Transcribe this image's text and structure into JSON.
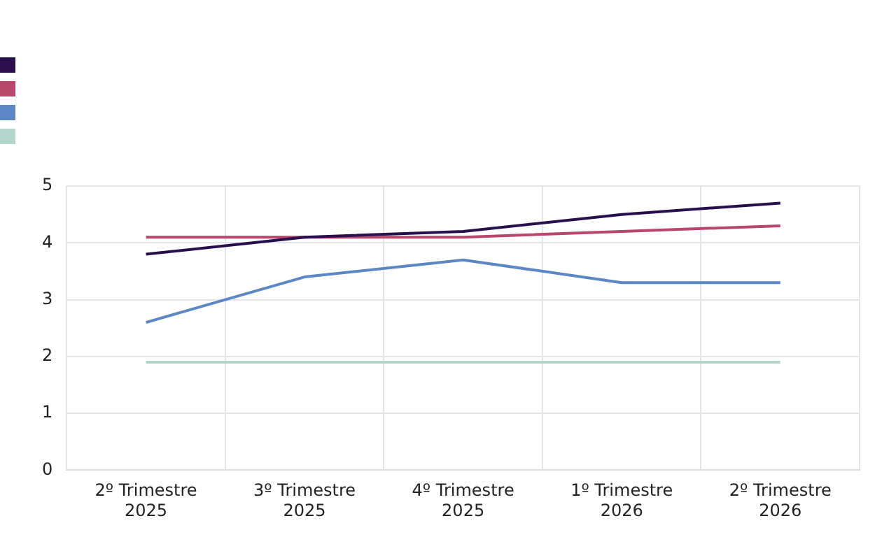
{
  "chart_data": {
    "type": "line",
    "categories": [
      "2º Trimestre 2025",
      "3º Trimestre 2025",
      "4º Trimestre 2025",
      "1º Trimestre 2026",
      "2º Trimestre 2026"
    ],
    "series": [
      {
        "color": "#2a0f4f",
        "values": [
          3.8,
          4.1,
          4.2,
          4.5,
          4.7
        ]
      },
      {
        "color": "#b8476b",
        "values": [
          4.1,
          4.1,
          4.1,
          4.2,
          4.3
        ]
      },
      {
        "color": "#5b87c5",
        "values": [
          2.6,
          3.4,
          3.7,
          3.3,
          3.3
        ]
      },
      {
        "color": "#b3d6cc",
        "values": [
          1.9,
          1.9,
          1.9,
          1.9,
          1.9
        ]
      }
    ],
    "ylim": [
      0,
      5
    ],
    "yticks": [
      0,
      1,
      2,
      3,
      4,
      5
    ],
    "grid": true,
    "marker": "none",
    "line_style": "solid"
  }
}
